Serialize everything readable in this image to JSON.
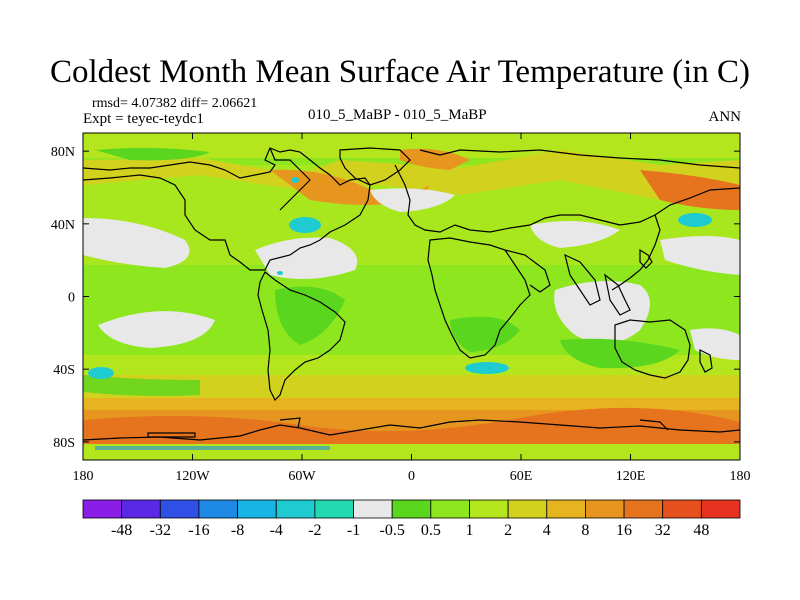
{
  "title": "Coldest Month Mean Surface Air Temperature (in C)",
  "stats": "rmsd= 4.07382 diff= 2.06621",
  "experiment": "Expt = teyec-teydc1",
  "subtitle": "010_5_MaBP - 010_5_MaBP",
  "season": "ANN",
  "map": {
    "lon_range": [
      -180,
      180
    ],
    "lat_range": [
      -90,
      90
    ],
    "lon_ticks": [
      {
        "value": -180,
        "label": "180"
      },
      {
        "value": -120,
        "label": "120W"
      },
      {
        "value": -60,
        "label": "60W"
      },
      {
        "value": 0,
        "label": "0"
      },
      {
        "value": 60,
        "label": "60E"
      },
      {
        "value": 120,
        "label": "120E"
      },
      {
        "value": 180,
        "label": "180"
      }
    ],
    "lat_ticks": [
      {
        "value": 80,
        "label": "80N"
      },
      {
        "value": 40,
        "label": "40N"
      },
      {
        "value": 0,
        "label": "0"
      },
      {
        "value": -40,
        "label": "40S"
      },
      {
        "value": -80,
        "label": "80S"
      }
    ]
  },
  "colorbar": {
    "colors": [
      "#8a1ee6",
      "#5a28e6",
      "#2f4fe6",
      "#1e8ae6",
      "#19b4e6",
      "#1ecbd0",
      "#22d8b0",
      "#e8e8e8",
      "#5ad61e",
      "#8ee61e",
      "#b4e61e",
      "#d2d21e",
      "#e6b41e",
      "#e6961e",
      "#e6731e",
      "#e6501e",
      "#e6321e"
    ],
    "labels": [
      "-48",
      "-32",
      "-16",
      "-8",
      "-4",
      "-2",
      "-1",
      "-0.5",
      "0.5",
      "1",
      "2",
      "4",
      "8",
      "16",
      "32",
      "48"
    ]
  }
}
